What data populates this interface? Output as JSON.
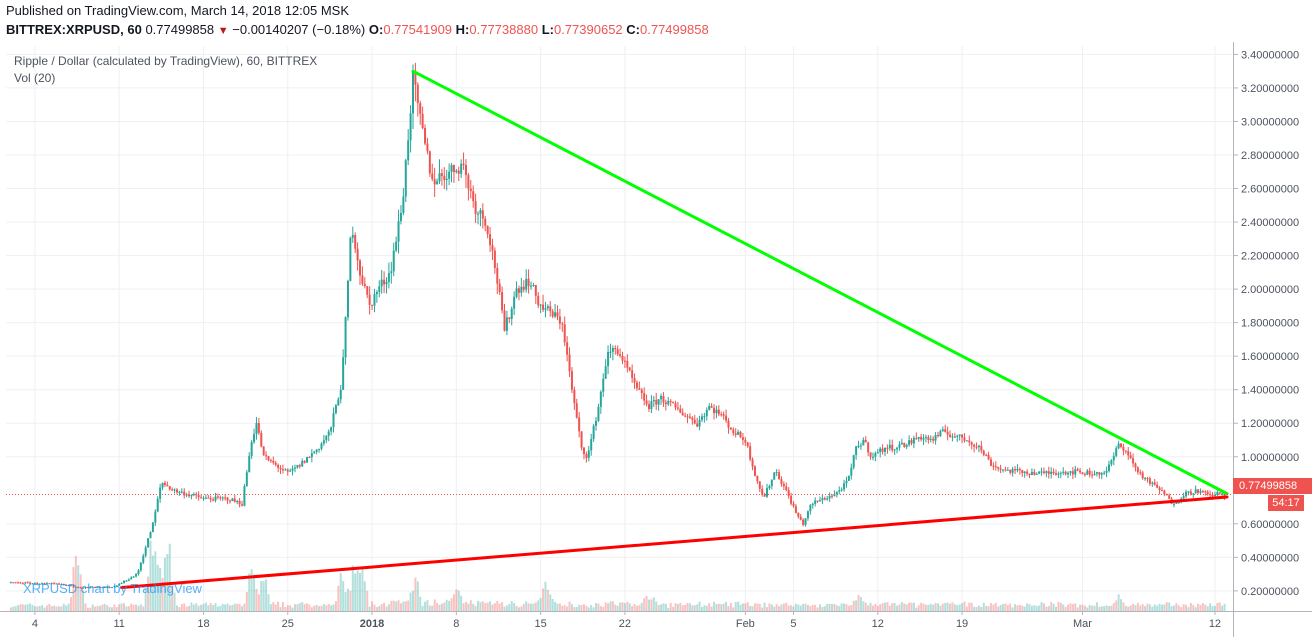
{
  "header": {
    "published": "Published on TradingView.com, March 14, 2018 12:05 MSK",
    "symbol": "BITTREX:XRPUSD, 60",
    "last": "0.77499858",
    "change": "−0.00140207 (−0.18%)",
    "open_label": "O:",
    "open": "0.77541909",
    "high_label": "H:",
    "high": "0.77738880",
    "low_label": "L:",
    "low": "0.77390652",
    "close_label": "C:",
    "close": "0.77499858",
    "down_icon": "triangle-down-icon"
  },
  "legend": {
    "title": "Ripple / Dollar (calculated by TradingView), 60, BITTREX",
    "volume": "Vol (20)"
  },
  "watermark": "XRPUSD chart by TradingView",
  "price_tag": "0.77499858",
  "time_tag": "54:17",
  "colors": {
    "up": "#26a69a",
    "down": "#ef5350",
    "resistance_line": "#00ff00",
    "support_line": "#ff0000",
    "grid": "#eef0f3"
  },
  "chart_data": {
    "type": "candlestick",
    "title": "Ripple / Dollar (calculated by TradingView), 60, BITTREX",
    "interval": "60",
    "ylim": [
      0.08,
      3.45
    ],
    "y_ticks": [
      "3.40000000",
      "3.20000000",
      "3.00000000",
      "2.80000000",
      "2.60000000",
      "2.40000000",
      "2.20000000",
      "2.00000000",
      "1.80000000",
      "1.60000000",
      "1.40000000",
      "1.20000000",
      "1.00000000",
      "0.60000000",
      "0.40000000",
      "0.20000000"
    ],
    "y_tick_values": [
      3.4,
      3.2,
      3.0,
      2.8,
      2.6,
      2.4,
      2.2,
      2.0,
      1.8,
      1.6,
      1.4,
      1.2,
      1.0,
      0.6,
      0.4,
      0.2
    ],
    "x_ticks": [
      "4",
      "11",
      "18",
      "25",
      "2018",
      "8",
      "15",
      "22",
      "Feb",
      "5",
      "12",
      "19",
      "Mar",
      "12"
    ],
    "x_tick_days": [
      4,
      11,
      18,
      25,
      32,
      39,
      46,
      53,
      63,
      67,
      74,
      81,
      91,
      102
    ],
    "x_tick_bold": [
      false,
      false,
      false,
      false,
      true,
      false,
      false,
      false,
      false,
      false,
      false,
      false,
      false,
      false
    ],
    "x_range_days": [
      1.6,
      103.5
    ],
    "price_path": [
      [
        2.0,
        0.25
      ],
      [
        6.0,
        0.24
      ],
      [
        8.0,
        0.22
      ],
      [
        10.5,
        0.22
      ],
      [
        12.5,
        0.3
      ],
      [
        13.8,
        0.6
      ],
      [
        14.5,
        0.85
      ],
      [
        15.5,
        0.8
      ],
      [
        18.0,
        0.75
      ],
      [
        20.0,
        0.75
      ],
      [
        21.2,
        0.72
      ],
      [
        22.0,
        1.1
      ],
      [
        22.4,
        1.2
      ],
      [
        23.0,
        1.0
      ],
      [
        24.0,
        0.95
      ],
      [
        25.0,
        0.9
      ],
      [
        26.0,
        0.95
      ],
      [
        27.5,
        1.05
      ],
      [
        28.5,
        1.15
      ],
      [
        29.5,
        1.45
      ],
      [
        30.3,
        2.4
      ],
      [
        31.0,
        2.1
      ],
      [
        31.8,
        1.9
      ],
      [
        32.5,
        2.0
      ],
      [
        33.5,
        2.1
      ],
      [
        34.5,
        2.5
      ],
      [
        35.4,
        3.25
      ],
      [
        36.0,
        3.0
      ],
      [
        37.0,
        2.65
      ],
      [
        38.5,
        2.7
      ],
      [
        39.5,
        2.75
      ],
      [
        40.5,
        2.5
      ],
      [
        41.5,
        2.4
      ],
      [
        42.3,
        2.1
      ],
      [
        43.0,
        1.75
      ],
      [
        44.0,
        2.0
      ],
      [
        45.0,
        2.05
      ],
      [
        46.0,
        1.9
      ],
      [
        47.0,
        1.85
      ],
      [
        47.8,
        1.8
      ],
      [
        48.6,
        1.4
      ],
      [
        49.4,
        1.05
      ],
      [
        49.9,
        1.0
      ],
      [
        50.8,
        1.3
      ],
      [
        51.5,
        1.6
      ],
      [
        52.3,
        1.65
      ],
      [
        53.0,
        1.55
      ],
      [
        54.0,
        1.4
      ],
      [
        55.0,
        1.3
      ],
      [
        56.0,
        1.35
      ],
      [
        57.0,
        1.3
      ],
      [
        58.0,
        1.25
      ],
      [
        59.0,
        1.2
      ],
      [
        60.0,
        1.3
      ],
      [
        61.0,
        1.25
      ],
      [
        62.0,
        1.15
      ],
      [
        63.0,
        1.1
      ],
      [
        63.8,
        0.9
      ],
      [
        64.5,
        0.75
      ],
      [
        65.5,
        0.92
      ],
      [
        66.5,
        0.78
      ],
      [
        67.3,
        0.65
      ],
      [
        67.8,
        0.6
      ],
      [
        68.5,
        0.72
      ],
      [
        69.5,
        0.75
      ],
      [
        70.5,
        0.78
      ],
      [
        71.5,
        0.85
      ],
      [
        72.2,
        1.05
      ],
      [
        72.8,
        1.1
      ],
      [
        73.5,
        1.0
      ],
      [
        74.5,
        1.05
      ],
      [
        75.5,
        1.06
      ],
      [
        76.5,
        1.08
      ],
      [
        77.5,
        1.12
      ],
      [
        78.5,
        1.1
      ],
      [
        79.5,
        1.15
      ],
      [
        80.5,
        1.12
      ],
      [
        81.5,
        1.1
      ],
      [
        82.5,
        1.05
      ],
      [
        83.5,
        0.95
      ],
      [
        84.5,
        0.92
      ],
      [
        86.0,
        0.91
      ],
      [
        87.5,
        0.9
      ],
      [
        89.0,
        0.91
      ],
      [
        90.5,
        0.91
      ],
      [
        92.0,
        0.9
      ],
      [
        93.0,
        0.91
      ],
      [
        94.0,
        1.07
      ],
      [
        94.5,
        1.05
      ],
      [
        95.5,
        0.92
      ],
      [
        96.5,
        0.85
      ],
      [
        97.5,
        0.8
      ],
      [
        98.5,
        0.72
      ],
      [
        99.5,
        0.78
      ],
      [
        100.5,
        0.8
      ],
      [
        101.5,
        0.77
      ],
      [
        102.5,
        0.78
      ],
      [
        103.0,
        0.77
      ]
    ],
    "annotations": [
      {
        "type": "trendline",
        "name": "resistance",
        "from": [
          35.4,
          3.3
        ],
        "to": [
          103.0,
          0.78
        ]
      },
      {
        "type": "trendline",
        "name": "support",
        "from": [
          11.2,
          0.22
        ],
        "to": [
          103.0,
          0.76
        ]
      },
      {
        "type": "price_line",
        "value": 0.77499858
      }
    ],
    "volume": {
      "label": "Vol (20)",
      "spikes": [
        [
          7.5,
          0.55
        ],
        [
          13.6,
          0.4
        ],
        [
          14.0,
          0.45
        ],
        [
          14.8,
          0.5
        ],
        [
          15.2,
          0.35
        ],
        [
          22.0,
          0.35
        ],
        [
          23.0,
          0.3
        ],
        [
          29.5,
          0.25
        ],
        [
          30.5,
          0.35
        ],
        [
          31.2,
          0.3
        ],
        [
          35.6,
          0.18
        ],
        [
          39.0,
          0.15
        ],
        [
          46.5,
          0.2
        ],
        [
          55.0,
          0.1
        ],
        [
          72.5,
          0.1
        ],
        [
          94.0,
          0.05
        ]
      ]
    }
  }
}
